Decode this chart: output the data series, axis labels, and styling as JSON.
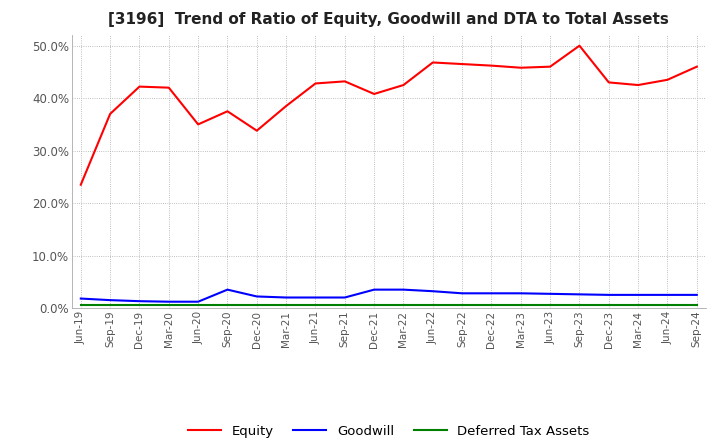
{
  "title": "[3196]  Trend of Ratio of Equity, Goodwill and DTA to Total Assets",
  "x_labels": [
    "Jun-19",
    "Sep-19",
    "Dec-19",
    "Mar-20",
    "Jun-20",
    "Sep-20",
    "Dec-20",
    "Mar-21",
    "Jun-21",
    "Sep-21",
    "Dec-21",
    "Mar-22",
    "Jun-22",
    "Sep-22",
    "Dec-22",
    "Mar-23",
    "Jun-23",
    "Sep-23",
    "Dec-23",
    "Mar-24",
    "Jun-24",
    "Sep-24"
  ],
  "equity": [
    23.5,
    37.0,
    42.2,
    42.0,
    35.0,
    37.5,
    33.8,
    38.5,
    42.8,
    43.2,
    40.8,
    42.5,
    46.8,
    46.5,
    46.2,
    45.8,
    46.0,
    50.0,
    43.0,
    42.5,
    43.5,
    46.0
  ],
  "goodwill": [
    1.8,
    1.5,
    1.3,
    1.2,
    1.2,
    3.5,
    2.2,
    2.0,
    2.0,
    2.0,
    3.5,
    3.5,
    3.2,
    2.8,
    2.8,
    2.8,
    2.7,
    2.6,
    2.5,
    2.5,
    2.5,
    2.5
  ],
  "dta": [
    0.5,
    0.5,
    0.5,
    0.5,
    0.5,
    0.5,
    0.5,
    0.5,
    0.5,
    0.5,
    0.5,
    0.5,
    0.5,
    0.5,
    0.5,
    0.5,
    0.5,
    0.5,
    0.5,
    0.5,
    0.5,
    0.5
  ],
  "equity_color": "#ff0000",
  "goodwill_color": "#0000ff",
  "dta_color": "#008000",
  "ylim": [
    0,
    52
  ],
  "yticks": [
    0,
    10,
    20,
    30,
    40,
    50
  ],
  "background_color": "#ffffff",
  "grid_color": "#aaaaaa",
  "title_fontsize": 11,
  "tick_color": "#555555"
}
